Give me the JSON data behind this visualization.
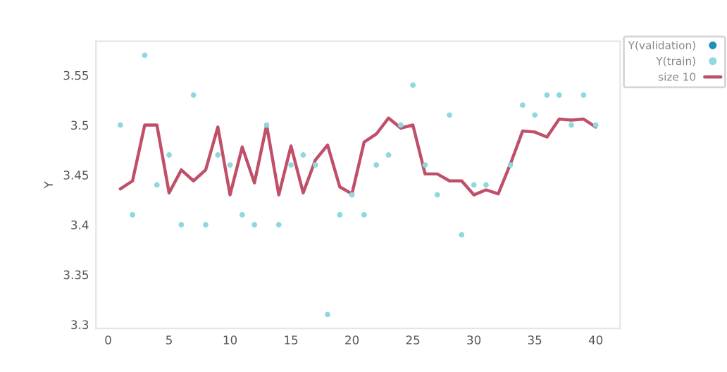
{
  "chart_data": {
    "type": "scatter",
    "ylabel": "Y",
    "x": [
      1,
      2,
      3,
      4,
      5,
      6,
      7,
      8,
      9,
      10,
      11,
      12,
      13,
      14,
      15,
      16,
      17,
      18,
      19,
      20,
      21,
      22,
      23,
      24,
      25,
      26,
      27,
      28,
      29,
      30,
      31,
      32,
      33,
      34,
      35,
      36,
      37,
      38,
      39,
      40
    ],
    "series": [
      {
        "name": "Y(validation)",
        "color": "#1f8fb8",
        "values": [
          null,
          null,
          null,
          null,
          null,
          null,
          null,
          null,
          null,
          null,
          null,
          null,
          null,
          null,
          null,
          null,
          null,
          null,
          null,
          null,
          null,
          null,
          null,
          null,
          null,
          null,
          null,
          null,
          null,
          null,
          null,
          null,
          null,
          null,
          null,
          null,
          null,
          null,
          null,
          null
        ]
      },
      {
        "name": "Y(train)",
        "color": "#8fd8e0",
        "values": [
          3.5,
          3.41,
          3.57,
          3.44,
          3.47,
          3.4,
          3.53,
          3.4,
          3.47,
          3.46,
          3.41,
          3.4,
          3.5,
          3.4,
          3.46,
          3.47,
          3.46,
          3.31,
          3.41,
          3.43,
          3.41,
          3.46,
          3.47,
          3.5,
          3.54,
          3.46,
          3.43,
          3.51,
          3.39,
          3.44,
          3.44,
          null,
          3.46,
          3.52,
          3.51,
          3.53,
          3.53,
          3.5,
          3.53,
          3.5
        ]
      },
      {
        "name": "size 10",
        "type": "line",
        "color": "#c0506a",
        "values": [
          3.436,
          3.444,
          3.5,
          3.5,
          3.432,
          3.455,
          3.444,
          3.455,
          3.498,
          3.43,
          3.478,
          3.442,
          3.5,
          3.43,
          3.479,
          3.432,
          3.465,
          3.48,
          3.438,
          3.431,
          3.483,
          3.491,
          3.507,
          3.497,
          3.5,
          3.451,
          3.451,
          3.444,
          3.444,
          3.43,
          3.435,
          3.431,
          3.461,
          3.494,
          3.493,
          3.488,
          3.506,
          3.505,
          3.506,
          3.498
        ]
      }
    ],
    "xlim": [
      -1,
      42
    ],
    "xticks": [
      0,
      5,
      10,
      15,
      20,
      25,
      30,
      35,
      40
    ],
    "ylim": [
      3.296,
      3.584
    ],
    "yticks": [
      3.3,
      3.35,
      3.4,
      3.45,
      3.5,
      3.55
    ],
    "legend": "right",
    "grid": false
  }
}
